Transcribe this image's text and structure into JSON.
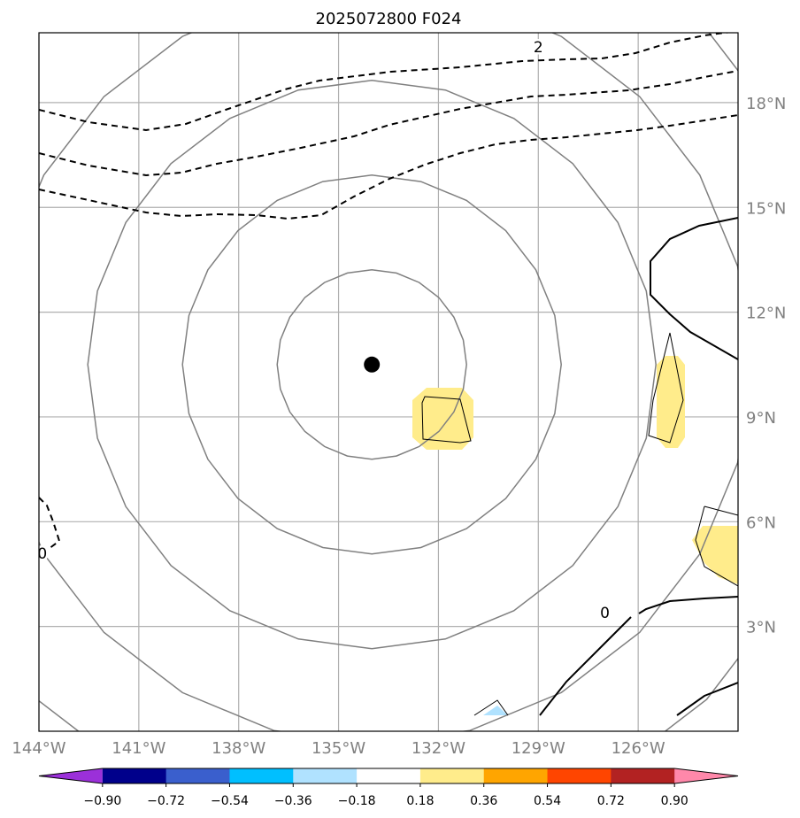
{
  "chart_data": {
    "type": "contour-map",
    "title": "2025072800 F024",
    "map": {
      "lon_range": [
        -144,
        -123
      ],
      "lat_range": [
        0,
        20
      ],
      "x_ticks": [
        {
          "value": -144,
          "label": "144°W"
        },
        {
          "value": -141,
          "label": "141°W"
        },
        {
          "value": -138,
          "label": "138°W"
        },
        {
          "value": -135,
          "label": "135°W"
        },
        {
          "value": -132,
          "label": "132°W"
        },
        {
          "value": -129,
          "label": "129°W"
        },
        {
          "value": -126,
          "label": "126°W"
        }
      ],
      "y_ticks": [
        {
          "value": 3,
          "label": "3°N"
        },
        {
          "value": 6,
          "label": "6°N"
        },
        {
          "value": 9,
          "label": "9°N"
        },
        {
          "value": 12,
          "label": "12°N"
        },
        {
          "value": 15,
          "label": "15°N"
        },
        {
          "value": 18,
          "label": "18°N"
        }
      ],
      "grid": true,
      "center_marker": {
        "lon": -134.0,
        "lat": 10.5
      },
      "range_ring_count": 5
    },
    "contour_labels": [
      {
        "text": "2",
        "lon": -129.0,
        "lat": 19.6
      },
      {
        "text": "0",
        "lon": -143.9,
        "lat": 5.1
      },
      {
        "text": "0",
        "lon": -127.0,
        "lat": 3.4
      }
    ],
    "colorbar": {
      "boundaries": [
        "−0.90",
        "−0.72",
        "−0.54",
        "−0.36",
        "−0.18",
        "0.18",
        "0.36",
        "0.54",
        "0.72",
        "0.90"
      ],
      "colors": [
        "#9b30d9",
        "#00008b",
        "#3a5fcd",
        "#00bfff",
        "#b0e2ff",
        "#ffffff",
        "#ffec8b",
        "#ffa500",
        "#ff4500",
        "#b22222",
        "#ff88aa"
      ],
      "extend": "both"
    }
  }
}
